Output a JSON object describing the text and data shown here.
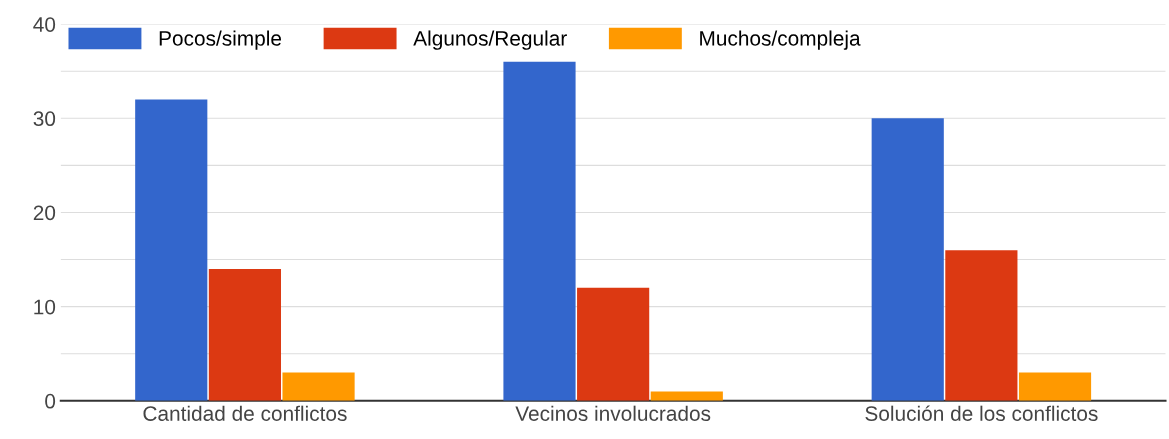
{
  "chart_data": {
    "type": "bar",
    "categories": [
      "Cantidad de conflictos",
      "Vecinos involucrados",
      "Solución de los conflictos"
    ],
    "series": [
      {
        "name": "Pocos/simple",
        "color": "#3366cc",
        "values": [
          32,
          36,
          30
        ]
      },
      {
        "name": "Algunos/Regular",
        "color": "#dc3912",
        "values": [
          14,
          12,
          16
        ]
      },
      {
        "name": "Muchos/compleja",
        "color": "#ff9900",
        "values": [
          3,
          1,
          3
        ]
      }
    ],
    "ylim": [
      0,
      40
    ],
    "yticks": [
      0,
      {
        "value": 5,
        "label": null
      },
      10,
      {
        "value": 15,
        "label": null
      },
      20,
      {
        "value": 25,
        "label": null
      },
      30,
      {
        "value": 35,
        "label": null
      },
      40
    ],
    "grid": "y",
    "legend": "top left"
  }
}
